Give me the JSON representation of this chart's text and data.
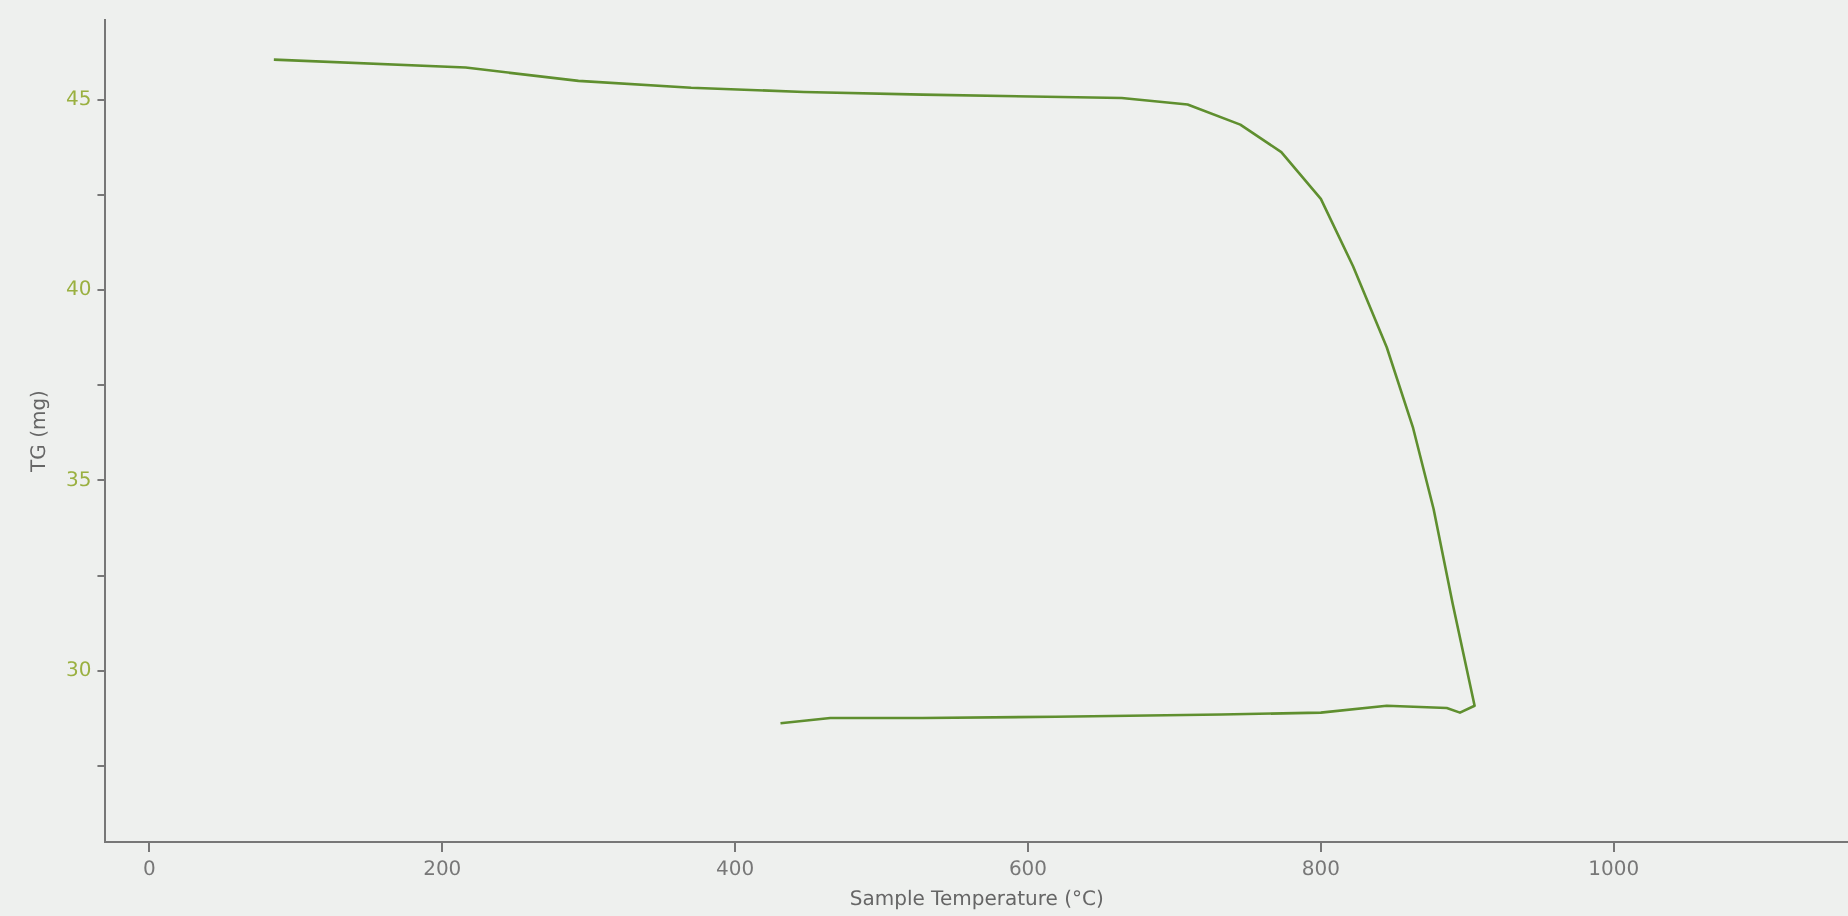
{
  "chart_data": {
    "type": "line",
    "xlabel": "Sample Temperature (°C)",
    "ylabel": "TG (mg)",
    "series": [
      {
        "color": "#5f8f2f",
        "x": [
          85,
          216,
          293,
          370,
          447,
          528,
          664,
          709,
          745,
          773,
          800,
          822,
          845,
          863,
          877,
          890,
          905,
          895,
          886,
          845,
          800,
          732,
          619,
          528,
          465,
          431
        ],
        "values": [
          46.06,
          45.85,
          45.5,
          45.32,
          45.21,
          45.14,
          45.05,
          44.88,
          44.35,
          43.63,
          42.4,
          40.63,
          38.5,
          36.38,
          34.25,
          31.77,
          29.08,
          28.9,
          29.02,
          29.08,
          28.9,
          28.85,
          28.79,
          28.76,
          28.76,
          28.62
        ]
      }
    ],
    "xlim": [
      -30,
      1160
    ],
    "xticks": [
      0,
      200,
      400,
      600,
      800,
      1000
    ],
    "ylim": [
      25.5,
      47.1
    ],
    "yticks": [
      {
        "value": 27.5,
        "label": null
      },
      30,
      {
        "value": 32.5,
        "label": null
      },
      35,
      {
        "value": 37.5,
        "label": null
      },
      40,
      {
        "value": 42.5,
        "label": null
      },
      45
    ],
    "grid": false,
    "legend": false,
    "marker": "none",
    "line_style": "solid"
  }
}
